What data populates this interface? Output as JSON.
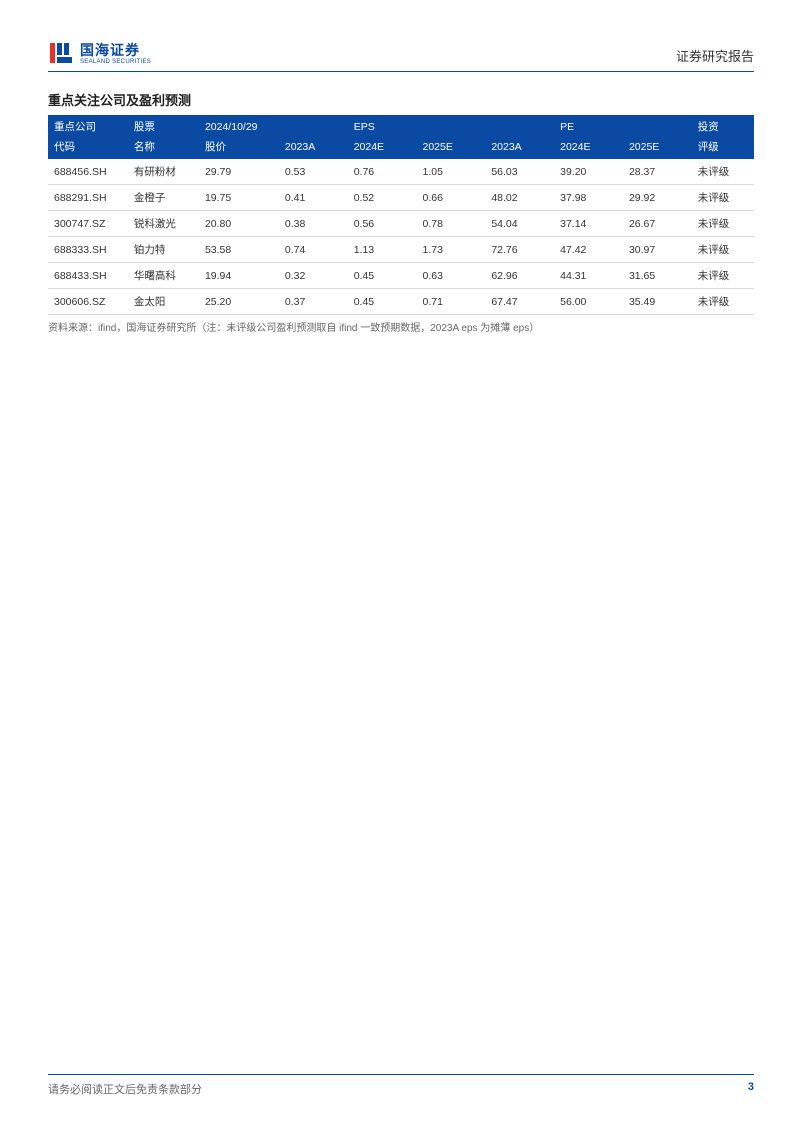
{
  "header": {
    "logo_cn": "国海证券",
    "logo_en": "SEALAND SECURITIES",
    "logo_colors": {
      "primary": "#0b4aa2",
      "accent": "#e6322a"
    },
    "report_type": "证券研究报告"
  },
  "section_title": "重点关注公司及盈利预测",
  "table": {
    "header_bg": "#0b4aa2",
    "header_color": "#ffffff",
    "border_color": "#d9d9d9",
    "fontsize": 10.5,
    "header_row1": {
      "c0": "重点公司",
      "c1": "股票",
      "c2": "2024/10/29",
      "c3": "",
      "c4": "EPS",
      "c5": "",
      "c6": "",
      "c7": "PE",
      "c8": "",
      "c9": "投资"
    },
    "header_row2": {
      "c0": "代码",
      "c1": "名称",
      "c2": "股价",
      "c3": "2023A",
      "c4": "2024E",
      "c5": "2025E",
      "c6": "2023A",
      "c7": "2024E",
      "c8": "2025E",
      "c9": "评级"
    },
    "rows": [
      {
        "code": "688456.SH",
        "name": "有研粉材",
        "price": "29.79",
        "eps_2023a": "0.53",
        "eps_2024e": "0.76",
        "eps_2025e": "1.05",
        "pe_2023a": "56.03",
        "pe_2024e": "39.20",
        "pe_2025e": "28.37",
        "rating": "未评级"
      },
      {
        "code": "688291.SH",
        "name": "金橙子",
        "price": "19.75",
        "eps_2023a": "0.41",
        "eps_2024e": "0.52",
        "eps_2025e": "0.66",
        "pe_2023a": "48.02",
        "pe_2024e": "37.98",
        "pe_2025e": "29.92",
        "rating": "未评级"
      },
      {
        "code": "300747.SZ",
        "name": "锐科激光",
        "price": "20.80",
        "eps_2023a": "0.38",
        "eps_2024e": "0.56",
        "eps_2025e": "0.78",
        "pe_2023a": "54.04",
        "pe_2024e": "37.14",
        "pe_2025e": "26.67",
        "rating": "未评级"
      },
      {
        "code": "688333.SH",
        "name": "铂力特",
        "price": "53.58",
        "eps_2023a": "0.74",
        "eps_2024e": "1.13",
        "eps_2025e": "1.73",
        "pe_2023a": "72.76",
        "pe_2024e": "47.42",
        "pe_2025e": "30.97",
        "rating": "未评级"
      },
      {
        "code": "688433.SH",
        "name": "华曙高科",
        "price": "19.94",
        "eps_2023a": "0.32",
        "eps_2024e": "0.45",
        "eps_2025e": "0.63",
        "pe_2023a": "62.96",
        "pe_2024e": "44.31",
        "pe_2025e": "31.65",
        "rating": "未评级"
      },
      {
        "code": "300606.SZ",
        "name": "金太阳",
        "price": "25.20",
        "eps_2023a": "0.37",
        "eps_2024e": "0.45",
        "eps_2025e": "0.71",
        "pe_2023a": "67.47",
        "pe_2024e": "56.00",
        "pe_2025e": "35.49",
        "rating": "未评级"
      }
    ]
  },
  "source_note": "资料来源：ifind，国海证券研究所（注：未评级公司盈利预测取自 ifind 一致预期数据，2023A eps 为摊薄 eps）",
  "footer": {
    "disclaimer": "请务必阅读正文后免责条款部分",
    "page_number": "3"
  }
}
